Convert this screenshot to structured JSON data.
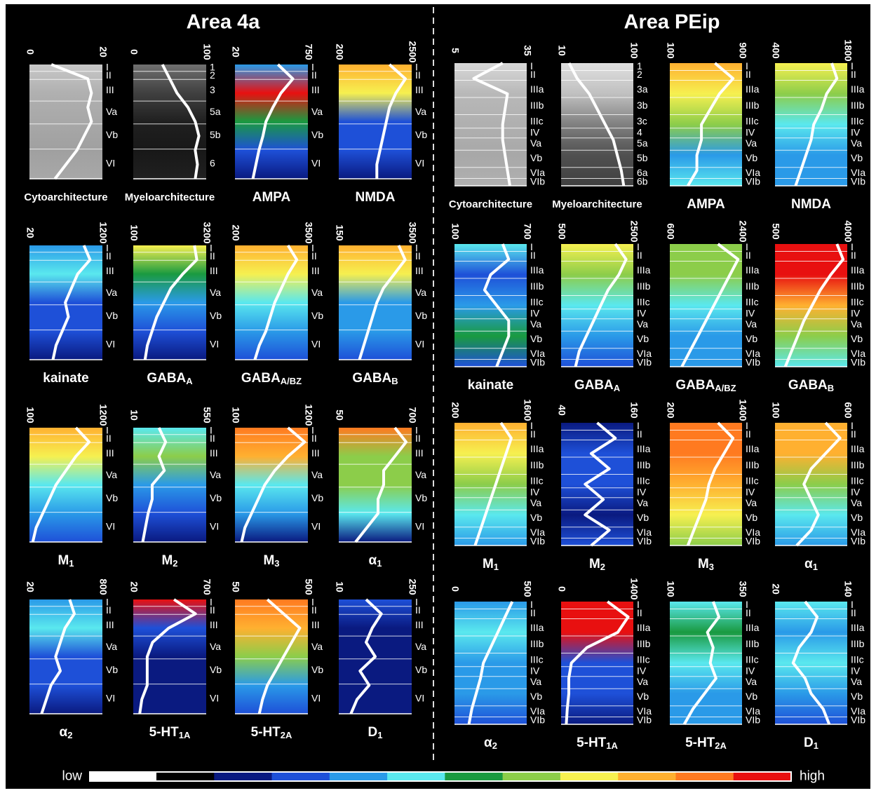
{
  "areas": [
    {
      "title": "Area 4a",
      "layers": [
        "I",
        "II",
        "III",
        "Va",
        "Vb",
        "VI"
      ],
      "panels": [
        {
          "name": "Cytoarchitecture",
          "xlim": [
            0,
            20
          ],
          "profile": [
            6,
            16,
            17,
            16,
            17,
            15,
            13,
            10,
            7
          ],
          "colors": [
            "#c8c8c8",
            "#b0b0b0",
            "#a8a8a8",
            "#a0a0a0",
            "#a8a8a8"
          ]
        },
        {
          "name": "Myeloarchitecture",
          "xlim": [
            0,
            100
          ],
          "layers": [
            "1",
            "2",
            "3",
            "5a",
            "5b",
            "6"
          ],
          "profile": [
            40,
            50,
            60,
            75,
            85,
            90,
            85,
            88,
            85
          ],
          "colors": [
            "#707070",
            "#404040",
            "#202020",
            "#181818",
            "#202020"
          ]
        },
        {
          "name": "AMPA",
          "xlim": [
            20,
            750
          ],
          "profile": [
            450,
            600,
            480,
            400,
            330,
            300,
            260,
            230,
            200
          ],
          "colors": [
            "#2a9ae8",
            "#e81010",
            "#1a9a40",
            "#1e50d8",
            "#0a1a80"
          ]
        },
        {
          "name": "NMDA",
          "xlim": [
            200,
            2500
          ],
          "profile": [
            1800,
            2300,
            2000,
            1800,
            1700,
            1600,
            1500,
            1400,
            1400
          ],
          "colors": [
            "#ffb030",
            "#f6f050",
            "#1e50d8",
            "#1e50d8",
            "#0a1a80"
          ]
        },
        {
          "name": "kainate",
          "xlim": [
            20,
            1200
          ],
          "profile": [
            900,
            1000,
            800,
            700,
            600,
            650,
            550,
            450,
            400
          ],
          "colors": [
            "#2a9ae8",
            "#5ae8ee",
            "#1e50d8",
            "#1e50d8",
            "#0a1a80"
          ]
        },
        {
          "name": "GABA",
          "sub": "A",
          "xlim": [
            100,
            3200
          ],
          "profile": [
            2700,
            2800,
            2200,
            1700,
            1400,
            1100,
            900,
            700,
            600
          ],
          "colors": [
            "#f6f050",
            "#1a9a40",
            "#2a9ae8",
            "#1e50d8",
            "#0a1a80"
          ]
        },
        {
          "name": "GABA",
          "sub": "A/BZ",
          "xlim": [
            200,
            3500
          ],
          "profile": [
            2600,
            3000,
            2600,
            2300,
            2000,
            1800,
            1600,
            1300,
            1100
          ],
          "colors": [
            "#ffb030",
            "#f6f050",
            "#5ae8ee",
            "#2a9ae8",
            "#1e50d8"
          ]
        },
        {
          "name": "GABA",
          "sub": "B",
          "xlim": [
            150,
            3500
          ],
          "profile": [
            2900,
            3200,
            2700,
            2200,
            1900,
            1700,
            1500,
            1300,
            1100
          ],
          "colors": [
            "#ffb030",
            "#f6f050",
            "#2a9ae8",
            "#2a9ae8",
            "#1e50d8"
          ]
        },
        {
          "name": "M",
          "sub": "1",
          "xlim": [
            100,
            1200
          ],
          "profile": [
            800,
            1000,
            800,
            650,
            500,
            400,
            300,
            200,
            150
          ],
          "colors": [
            "#ffb030",
            "#f6f050",
            "#5ae8ee",
            "#2a9ae8",
            "#1e50d8"
          ]
        },
        {
          "name": "M",
          "sub": "2",
          "xlim": [
            10,
            550
          ],
          "profile": [
            200,
            250,
            200,
            240,
            150,
            150,
            120,
            100,
            80
          ],
          "colors": [
            "#5ae8ee",
            "#8ccd4a",
            "#2a9ae8",
            "#1e50d8",
            "#0a1a80"
          ]
        },
        {
          "name": "M",
          "sub": "3",
          "xlim": [
            100,
            1200
          ],
          "profile": [
            900,
            1150,
            900,
            700,
            550,
            450,
            350,
            250,
            200
          ],
          "colors": [
            "#ff7a20",
            "#ffb030",
            "#5ae8ee",
            "#2a9ae8",
            "#0a1a80"
          ]
        },
        {
          "name": "α",
          "sub": "1",
          "xlim": [
            50,
            700
          ],
          "profile": [
            550,
            650,
            550,
            450,
            450,
            400,
            400,
            300,
            200
          ],
          "colors": [
            "#ff7a20",
            "#8ccd4a",
            "#8ccd4a",
            "#5ae8ee",
            "#0a1a80"
          ]
        },
        {
          "name": "α",
          "sub": "2",
          "xlim": [
            20,
            800
          ],
          "profile": [
            450,
            500,
            400,
            350,
            300,
            350,
            250,
            200,
            150
          ],
          "colors": [
            "#2a9ae8",
            "#5ae8ee",
            "#1e50d8",
            "#1e50d8",
            "#0a1a80"
          ]
        },
        {
          "name": "5-HT",
          "sub": "1A",
          "xlim": [
            20,
            700
          ],
          "profile": [
            400,
            600,
            350,
            200,
            150,
            150,
            150,
            100,
            80
          ],
          "colors": [
            "#e81010",
            "#1e50d8",
            "#0a1a80",
            "#0a1a80",
            "#0a1a80"
          ]
        },
        {
          "name": "5-HT",
          "sub": "2A",
          "xlim": [
            50,
            500
          ],
          "profile": [
            250,
            350,
            450,
            400,
            350,
            300,
            250,
            220,
            200
          ],
          "colors": [
            "#ff7a20",
            "#ffb030",
            "#8ccd4a",
            "#2a9ae8",
            "#1e50d8"
          ]
        },
        {
          "name": "D",
          "sub": "1",
          "xlim": [
            10,
            250
          ],
          "profile": [
            100,
            150,
            120,
            100,
            130,
            80,
            110,
            70,
            50
          ],
          "colors": [
            "#1e50d8",
            "#0a1a80",
            "#0a1a80",
            "#0a1a80",
            "#0a1a80"
          ]
        }
      ]
    },
    {
      "title": "Area PEip",
      "layers": [
        "I",
        "II",
        "IIIa",
        "IIIb",
        "IIIc",
        "IV",
        "Va",
        "Vb",
        "VIa",
        "VIb"
      ],
      "panels": [
        {
          "name": "Cytoarchitecture",
          "xlim": [
            5,
            35
          ],
          "profile": [
            25,
            13,
            27,
            26,
            25,
            25,
            26,
            27,
            28
          ],
          "colors": [
            "#d8d8d8",
            "#b8b8b8",
            "#b0b0b0",
            "#a8a8a8",
            "#b0b0b0"
          ]
        },
        {
          "name": "Myeloarchitecture",
          "xlim": [
            10,
            100
          ],
          "layers": [
            "1",
            "2",
            "3a",
            "3b",
            "3c",
            "4",
            "5a",
            "5b",
            "6a",
            "6b"
          ],
          "profile": [
            20,
            30,
            45,
            55,
            65,
            75,
            80,
            85,
            88
          ],
          "colors": [
            "#e0e0e0",
            "#c0c0c0",
            "#808080",
            "#505050",
            "#404040"
          ]
        },
        {
          "name": "AMPA",
          "xlim": [
            100,
            900
          ],
          "profile": [
            600,
            800,
            650,
            550,
            450,
            450,
            400,
            400,
            300
          ],
          "colors": [
            "#ffb030",
            "#f6f050",
            "#8ccd4a",
            "#2a9ae8",
            "#5ae8ee"
          ]
        },
        {
          "name": "NMDA",
          "xlim": [
            400,
            1800
          ],
          "profile": [
            1500,
            1600,
            1400,
            1300,
            1150,
            1100,
            1000,
            900,
            800
          ],
          "colors": [
            "#f6f050",
            "#8ccd4a",
            "#5ae8ee",
            "#2a9ae8",
            "#2a9ae8"
          ]
        },
        {
          "name": "kainate",
          "xlim": [
            100,
            700
          ],
          "profile": [
            500,
            550,
            400,
            350,
            450,
            550,
            550,
            500,
            450
          ],
          "colors": [
            "#5ae8ee",
            "#1e50d8",
            "#2a9ae8",
            "#1a9a40",
            "#1e50d8"
          ]
        },
        {
          "name": "GABA",
          "sub": "A",
          "xlim": [
            500,
            2500
          ],
          "profile": [
            2000,
            2300,
            2100,
            1800,
            1600,
            1400,
            1200,
            1000,
            900
          ],
          "colors": [
            "#f6f050",
            "#8ccd4a",
            "#5ae8ee",
            "#2a9ae8",
            "#1e50d8"
          ]
        },
        {
          "name": "GABA",
          "sub": "A/BZ",
          "xlim": [
            600,
            2400
          ],
          "profile": [
            1800,
            2300,
            2100,
            1900,
            1700,
            1500,
            1300,
            1100,
            900
          ],
          "colors": [
            "#8ccd4a",
            "#8ccd4a",
            "#5ae8ee",
            "#2a9ae8",
            "#2a9ae8"
          ]
        },
        {
          "name": "GABA",
          "sub": "B",
          "xlim": [
            500,
            4000
          ],
          "profile": [
            3500,
            3800,
            3200,
            2700,
            2300,
            1900,
            1600,
            1300,
            1000
          ],
          "colors": [
            "#e81010",
            "#e81010",
            "#ffb030",
            "#8ccd4a",
            "#5ae8ee"
          ]
        },
        {
          "name": "M",
          "sub": "1",
          "xlim": [
            200,
            1600
          ],
          "profile": [
            1100,
            1300,
            1200,
            1100,
            1000,
            900,
            800,
            700,
            600
          ],
          "colors": [
            "#ffb030",
            "#f6f050",
            "#8ccd4a",
            "#5ae8ee",
            "#2a9ae8"
          ]
        },
        {
          "name": "M",
          "sub": "2",
          "xlim": [
            40,
            160
          ],
          "profile": [
            100,
            130,
            90,
            120,
            80,
            110,
            80,
            120,
            90
          ],
          "colors": [
            "#0a1a80",
            "#1e50d8",
            "#1e50d8",
            "#0a1a80",
            "#1e50d8"
          ]
        },
        {
          "name": "M",
          "sub": "3",
          "xlim": [
            200,
            1400
          ],
          "profile": [
            1000,
            1250,
            1100,
            950,
            850,
            800,
            700,
            600,
            500
          ],
          "colors": [
            "#ff7a20",
            "#ff7a20",
            "#ffb030",
            "#f6f050",
            "#8ccd4a"
          ]
        },
        {
          "name": "α",
          "sub": "1",
          "xlim": [
            100,
            600
          ],
          "profile": [
            450,
            550,
            450,
            350,
            300,
            350,
            400,
            350,
            250
          ],
          "colors": [
            "#ffb030",
            "#ffb030",
            "#8ccd4a",
            "#5ae8ee",
            "#2a9ae8"
          ]
        },
        {
          "name": "α",
          "sub": "2",
          "xlim": [
            0,
            500
          ],
          "profile": [
            400,
            350,
            300,
            250,
            200,
            180,
            150,
            120,
            100
          ],
          "colors": [
            "#2a9ae8",
            "#5ae8ee",
            "#2a9ae8",
            "#2a9ae8",
            "#1e50d8"
          ]
        },
        {
          "name": "5-HT",
          "sub": "1A",
          "xlim": [
            0,
            1400
          ],
          "profile": [
            900,
            1300,
            1100,
            500,
            200,
            150,
            150,
            120,
            100
          ],
          "colors": [
            "#e81010",
            "#e81010",
            "#1e50d8",
            "#1e50d8",
            "#0a1a80"
          ]
        },
        {
          "name": "5-HT",
          "sub": "2A",
          "xlim": [
            100,
            350
          ],
          "profile": [
            250,
            270,
            230,
            250,
            240,
            260,
            220,
            180,
            150
          ],
          "colors": [
            "#5ae8ee",
            "#1a9a40",
            "#5ae8ee",
            "#2a9ae8",
            "#2a9ae8"
          ]
        },
        {
          "name": "D",
          "sub": "1",
          "xlim": [
            20,
            140
          ],
          "profile": [
            70,
            90,
            80,
            60,
            50,
            70,
            80,
            100,
            110
          ],
          "colors": [
            "#5ae8ee",
            "#2a9ae8",
            "#5ae8ee",
            "#2a9ae8",
            "#1e50d8"
          ]
        }
      ]
    }
  ],
  "colorbar": {
    "low": "low",
    "high": "high",
    "colors": [
      "#000000",
      "#0a1a80",
      "#1e50d8",
      "#2a9ae8",
      "#5ae8ee",
      "#1a9a40",
      "#8ccd4a",
      "#f6f050",
      "#ffb030",
      "#ff7a20",
      "#e81010"
    ]
  }
}
